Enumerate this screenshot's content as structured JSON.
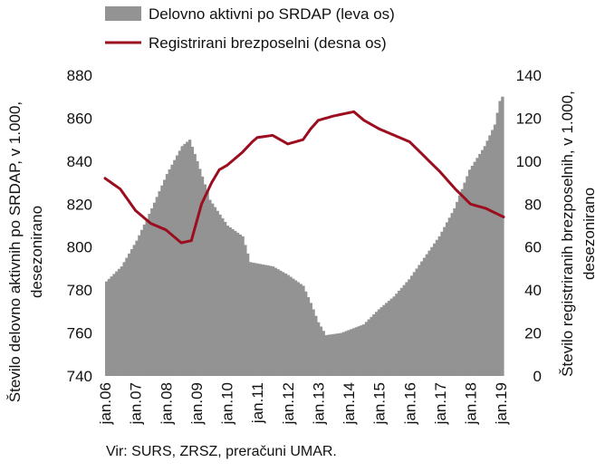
{
  "chart_data": {
    "type": "bar+line",
    "legend": {
      "position": "top-left",
      "entries": [
        "Delovno aktivni po SRDAP (leva os)",
        "Registrirani brezposelni (desna os)"
      ]
    },
    "left_axis": {
      "label_line1": "Število delovno aktivnih po SRDAP, v 1.000,",
      "label_line2": "desezonirano",
      "min": 740,
      "max": 880,
      "ticks": [
        "740",
        "760",
        "780",
        "800",
        "820",
        "840",
        "860",
        "880"
      ]
    },
    "right_axis": {
      "label_line1": "Število registriranih brezposelnih, v 1.000,",
      "label_line2": "desezonirano",
      "min": 0,
      "max": 140,
      "ticks": [
        "0",
        "20",
        "40",
        "60",
        "80",
        "100",
        "120",
        "140"
      ]
    },
    "x_ticks": [
      "jan.06",
      "jan.07",
      "jan.08",
      "jan.09",
      "jan.10",
      "jan.11",
      "jan.12",
      "jan.13",
      "jan.14",
      "jan.15",
      "jan.16",
      "jan.17",
      "jan.18",
      "jan.19"
    ],
    "grid": false,
    "series": [
      {
        "name": "Delovno aktivni po SRDAP (leva os)",
        "kind": "bar",
        "axis": "left",
        "color": "#939393",
        "knots": [
          [
            "2006-01",
            784
          ],
          [
            "2006-07",
            791
          ],
          [
            "2007-01",
            803
          ],
          [
            "2007-07",
            818
          ],
          [
            "2008-01",
            834
          ],
          [
            "2008-07",
            847
          ],
          [
            "2008-10",
            850
          ],
          [
            "2009-01",
            840
          ],
          [
            "2009-06",
            822
          ],
          [
            "2010-01",
            810
          ],
          [
            "2010-07",
            805
          ],
          [
            "2010-10",
            793
          ],
          [
            "2011-07",
            791
          ],
          [
            "2012-01",
            787
          ],
          [
            "2012-07",
            782
          ],
          [
            "2012-10",
            774
          ],
          [
            "2013-01",
            765
          ],
          [
            "2013-04",
            759
          ],
          [
            "2013-10",
            760
          ],
          [
            "2014-07",
            764
          ],
          [
            "2015-01",
            771
          ],
          [
            "2015-07",
            777
          ],
          [
            "2016-01",
            785
          ],
          [
            "2016-07",
            795
          ],
          [
            "2017-01",
            805
          ],
          [
            "2017-07",
            818
          ],
          [
            "2018-01",
            836
          ],
          [
            "2018-07",
            847
          ],
          [
            "2018-11",
            857
          ],
          [
            "2019-01",
            868
          ],
          [
            "2019-02",
            870
          ]
        ]
      },
      {
        "name": "Registrirani brezposelni (desna os)",
        "kind": "line",
        "axis": "right",
        "color": "#9b0d1f",
        "knots": [
          [
            "2006-01",
            92
          ],
          [
            "2006-07",
            87
          ],
          [
            "2007-01",
            77
          ],
          [
            "2007-07",
            71
          ],
          [
            "2008-01",
            68
          ],
          [
            "2008-07",
            62
          ],
          [
            "2008-11",
            63
          ],
          [
            "2009-03",
            80
          ],
          [
            "2009-07",
            90
          ],
          [
            "2009-10",
            96
          ],
          [
            "2010-01",
            98
          ],
          [
            "2010-07",
            104
          ],
          [
            "2010-11",
            109
          ],
          [
            "2011-01",
            111
          ],
          [
            "2011-07",
            112
          ],
          [
            "2012-01",
            108
          ],
          [
            "2012-07",
            110
          ],
          [
            "2012-10",
            115
          ],
          [
            "2013-01",
            119
          ],
          [
            "2013-07",
            121
          ],
          [
            "2014-03",
            123
          ],
          [
            "2014-07",
            119
          ],
          [
            "2015-01",
            115
          ],
          [
            "2015-07",
            112
          ],
          [
            "2016-01",
            109
          ],
          [
            "2016-07",
            102
          ],
          [
            "2017-01",
            95
          ],
          [
            "2017-07",
            87
          ],
          [
            "2018-01",
            80
          ],
          [
            "2018-07",
            78
          ],
          [
            "2019-02",
            74
          ]
        ]
      }
    ],
    "source": "Vir: SURS, ZRSZ, preračuni UMAR."
  }
}
